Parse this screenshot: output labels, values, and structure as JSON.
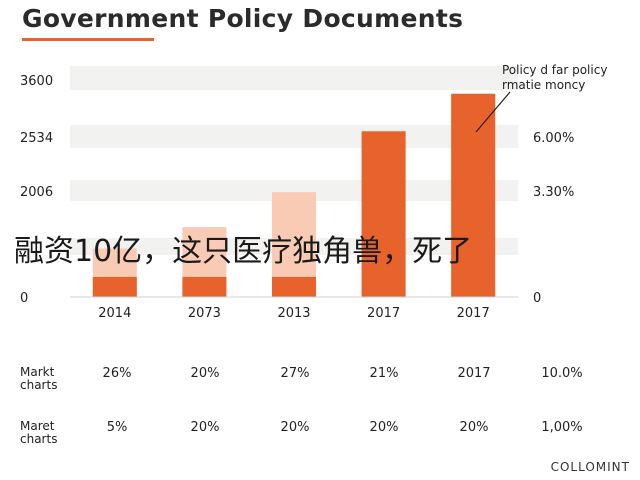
{
  "title": "Government Policy Documents",
  "chart_data": {
    "type": "bar",
    "categories": [
      "2014",
      "2073",
      "2013",
      "2017",
      "2017"
    ],
    "y_ticks_left": [
      "3600",
      "2534",
      "2006",
      "0"
    ],
    "y_ticks_left_values": [
      3600,
      2534,
      2006,
      0
    ],
    "y_ticks_right": [
      "6.00%",
      "3.30%",
      "0"
    ],
    "ylim": [
      0,
      3600
    ],
    "series": [
      {
        "values": [
          750,
          1080,
          1620,
          2560,
          3140
        ],
        "color": "#f9cbb4"
      },
      {
        "values": [
          310,
          310,
          310,
          2560,
          3140
        ],
        "color": "#e8632c"
      }
    ],
    "annotation": {
      "line1": "Policy d far policy",
      "line2": "rmatie moncy"
    },
    "grid": true
  },
  "overlay_text": "融资10亿，这只医疗独角兽，死了",
  "table": {
    "rows": [
      {
        "label_line1": "Markt",
        "label_line2": "charts",
        "cells": [
          "26%",
          "20%",
          "27%",
          "21%",
          "2017",
          "10.0%"
        ]
      },
      {
        "label_line1": "Maret",
        "label_line2": "charts",
        "cells": [
          "5%",
          "20%",
          "20%",
          "20%",
          "20%",
          "1,00%"
        ]
      }
    ]
  },
  "brand": "COLLOMINT"
}
